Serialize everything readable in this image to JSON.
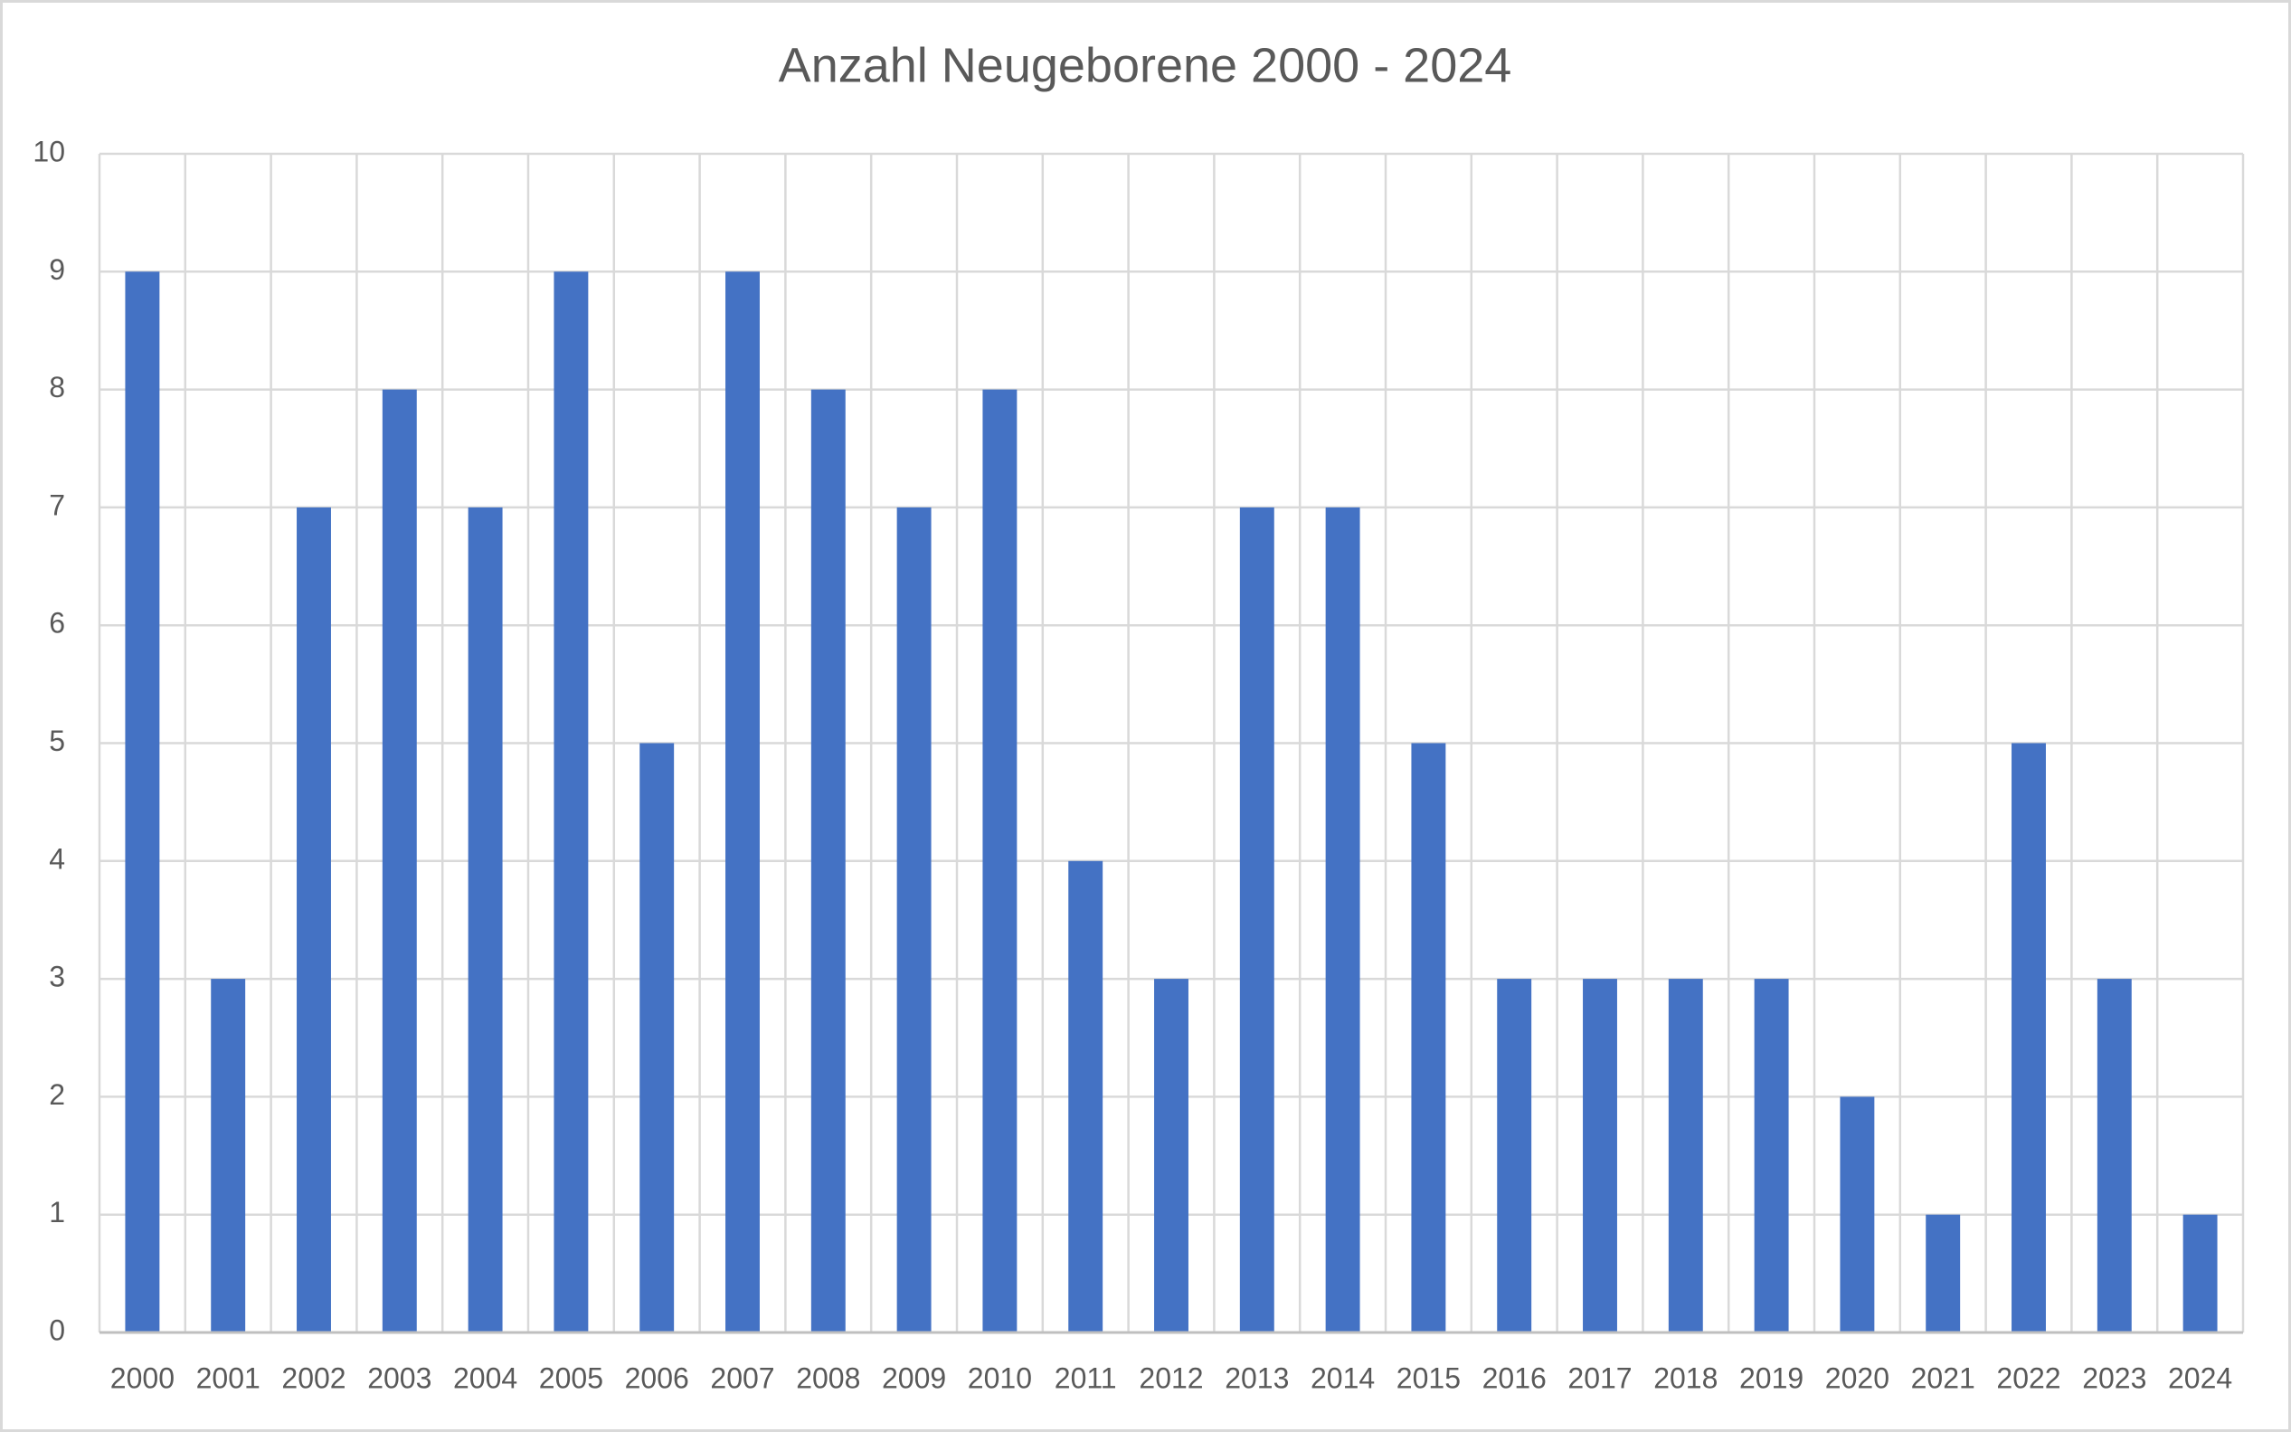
{
  "chart_data": {
    "type": "bar",
    "title": "Anzahl Neugeborene 2000 - 2024",
    "categories": [
      "2000",
      "2001",
      "2002",
      "2003",
      "2004",
      "2005",
      "2006",
      "2007",
      "2008",
      "2009",
      "2010",
      "2011",
      "2012",
      "2013",
      "2014",
      "2015",
      "2016",
      "2017",
      "2018",
      "2019",
      "2020",
      "2021",
      "2022",
      "2023",
      "2024"
    ],
    "values": [
      9,
      3,
      7,
      8,
      7,
      9,
      5,
      9,
      8,
      7,
      8,
      4,
      3,
      7,
      7,
      5,
      3,
      3,
      3,
      3,
      2,
      1,
      5,
      3,
      1
    ],
    "color": "#4472c4",
    "ylim": [
      0,
      10
    ],
    "yticks": [
      0,
      1,
      2,
      3,
      4,
      5,
      6,
      7,
      8,
      9,
      10
    ],
    "grid": true
  }
}
